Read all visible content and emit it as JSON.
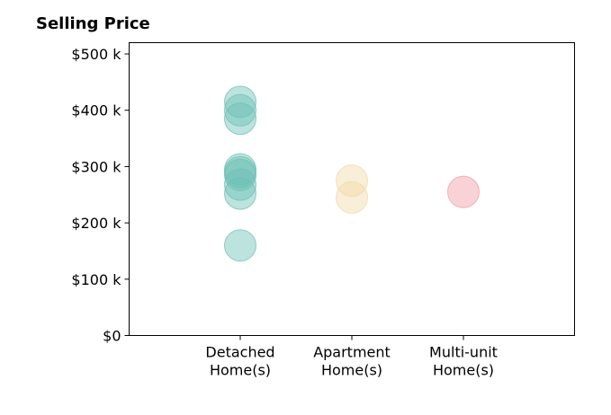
{
  "chart_data": {
    "type": "scatter",
    "title": "Selling Price",
    "xlabel": "",
    "ylabel": "",
    "categories": [
      "Detached\nHome(s)",
      "Apartment\nHome(s)",
      "Multi-unit\nHome(s)"
    ],
    "ylim": [
      0,
      520000
    ],
    "yticks": [
      0,
      100000,
      200000,
      300000,
      400000,
      500000
    ],
    "ytick_labels": [
      "$0",
      "$100 k",
      "$200 k",
      "$300 k",
      "$400 k",
      "$500 k"
    ],
    "grid": false,
    "series": [
      {
        "category": "Detached\nHome(s)",
        "color": "#6cc0b6",
        "values": [
          415000,
          400000,
          385000,
          295000,
          290000,
          285000,
          268000,
          252000,
          160000
        ]
      },
      {
        "category": "Apartment\nHome(s)",
        "color": "#f2d9a6",
        "values": [
          275000,
          245000
        ]
      },
      {
        "category": "Multi-unit\nHome(s)",
        "color": "#f19ca6",
        "values": [
          255000
        ]
      }
    ]
  }
}
